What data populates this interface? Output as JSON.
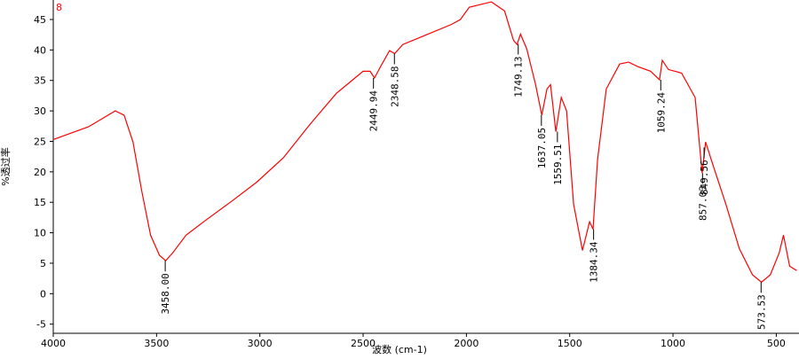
{
  "chart_data": {
    "type": "line",
    "xlabel": "波数 (cm-1)",
    "ylabel": "%透过率",
    "xlim": [
      4000,
      390
    ],
    "ylim": [
      -6.5,
      48.2
    ],
    "reverse_x": true,
    "grid": false,
    "xticks": [
      4000,
      3500,
      3000,
      2500,
      2000,
      1500,
      1000,
      500
    ],
    "yticks": [
      -5,
      0,
      5,
      10,
      15,
      20,
      25,
      30,
      35,
      40,
      45
    ],
    "series": [
      {
        "name": "8",
        "color": "#ff0000",
        "x": [
          4000,
          3829,
          3700,
          3657,
          3614,
          3572,
          3529,
          3486,
          3456,
          3422,
          3357,
          3272,
          3143,
          3015,
          2886,
          2757,
          2629,
          2500,
          2466,
          2445,
          2415,
          2372,
          2347,
          2308,
          2201,
          2072,
          2029,
          1986,
          1879,
          1815,
          1772,
          1755,
          1738,
          1708,
          1665,
          1635,
          1610,
          1593,
          1567,
          1541,
          1515,
          1481,
          1438,
          1404,
          1387,
          1365,
          1323,
          1258,
          1215,
          1172,
          1108,
          1065,
          1052,
          1022,
          958,
          893,
          859,
          842,
          808,
          744,
          679,
          615,
          572,
          529,
          486,
          465,
          435,
          401
        ],
        "values": [
          25.3,
          27.4,
          30.0,
          29.3,
          24.9,
          16.9,
          9.6,
          6.3,
          5.4,
          6.7,
          9.6,
          11.8,
          15.0,
          18.3,
          22.3,
          27.8,
          32.9,
          36.5,
          36.5,
          35.4,
          37.3,
          39.9,
          39.4,
          40.9,
          42.4,
          44.2,
          45.0,
          47.0,
          47.9,
          46.4,
          41.6,
          40.9,
          42.6,
          40.2,
          34.3,
          29.3,
          33.6,
          34.3,
          26.6,
          32.2,
          30.0,
          14.7,
          7.1,
          11.8,
          10.6,
          22.0,
          33.6,
          37.7,
          38.0,
          37.3,
          36.5,
          35.1,
          38.3,
          36.8,
          36.2,
          32.2,
          19.8,
          24.9,
          21.3,
          14.7,
          7.4,
          3.1,
          1.9,
          3.1,
          6.7,
          9.6,
          4.5,
          3.8
        ]
      }
    ],
    "peaks": [
      {
        "x": 3458.0,
        "y": 5.4,
        "label": "3458.00"
      },
      {
        "x": 2449.94,
        "y": 35.4,
        "label": "2449.94"
      },
      {
        "x": 2348.58,
        "y": 39.4,
        "label": "2348.58"
      },
      {
        "x": 1749.13,
        "y": 41.0,
        "label": "1749.13"
      },
      {
        "x": 1637.05,
        "y": 29.3,
        "label": "1637.05"
      },
      {
        "x": 1559.51,
        "y": 26.6,
        "label": "1559.51"
      },
      {
        "x": 1384.34,
        "y": 10.6,
        "label": "1384.34"
      },
      {
        "x": 1059.24,
        "y": 35.1,
        "label": "1059.24"
      },
      {
        "x": 857.03,
        "y": 19.8,
        "label": "857.03"
      },
      {
        "x": 849.56,
        "y": 24.0,
        "label": "849.56"
      },
      {
        "x": 573.53,
        "y": 1.9,
        "label": "573.53"
      }
    ]
  }
}
